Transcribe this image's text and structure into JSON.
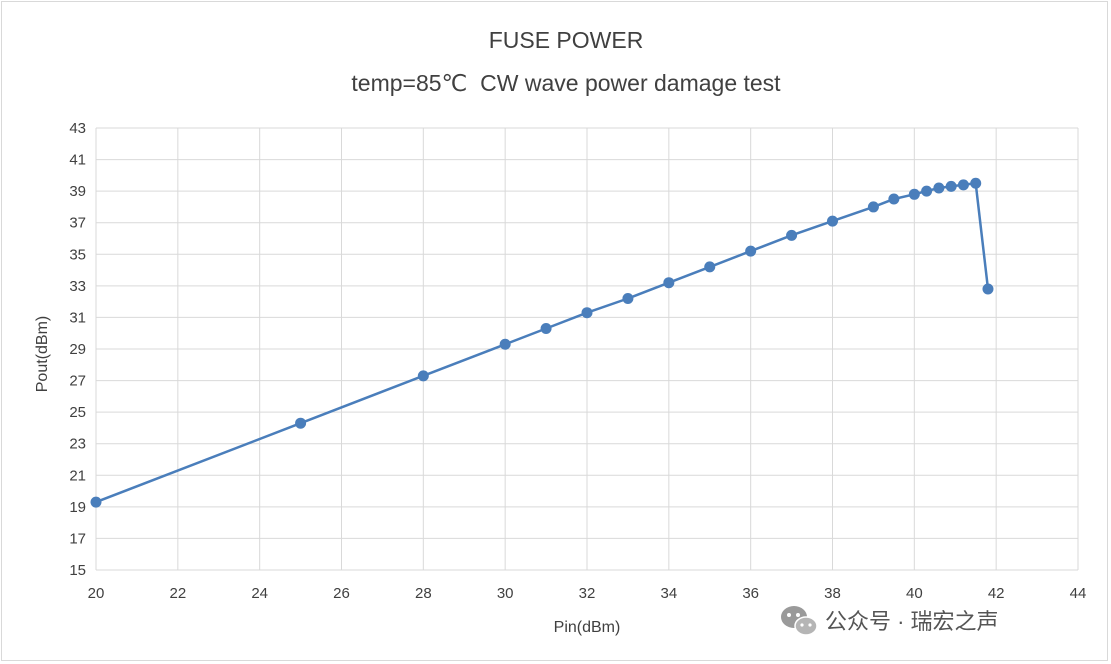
{
  "chart_data": {
    "type": "line",
    "title": "FUSE POWER",
    "subtitle": "temp=85℃  CW wave power damage test",
    "xlabel": "Pin(dBm)",
    "ylabel": "Pout(dBm)",
    "xlim": [
      20,
      44
    ],
    "ylim": [
      15,
      43
    ],
    "xticks": [
      20,
      22,
      24,
      26,
      28,
      30,
      32,
      34,
      36,
      38,
      40,
      42,
      44
    ],
    "yticks": [
      15,
      17,
      19,
      21,
      23,
      25,
      27,
      29,
      31,
      33,
      35,
      37,
      39,
      41,
      43
    ],
    "grid": true,
    "legend": "none",
    "series": [
      {
        "color": "#4a7ebb",
        "x": [
          20,
          25,
          28,
          30,
          31,
          32,
          33,
          34,
          35,
          36,
          37,
          38,
          39,
          39.5,
          40,
          40.3,
          40.6,
          40.9,
          41.2,
          41.5,
          41.8
        ],
        "y": [
          19.3,
          24.3,
          27.3,
          29.3,
          30.3,
          31.3,
          32.2,
          33.2,
          34.2,
          35.2,
          36.2,
          37.1,
          38.0,
          38.5,
          38.8,
          39.0,
          39.2,
          39.3,
          39.4,
          39.5,
          32.8
        ]
      }
    ]
  },
  "watermark": {
    "text": "公众号 · 瑞宏之声",
    "icon": "wechat-icon"
  }
}
